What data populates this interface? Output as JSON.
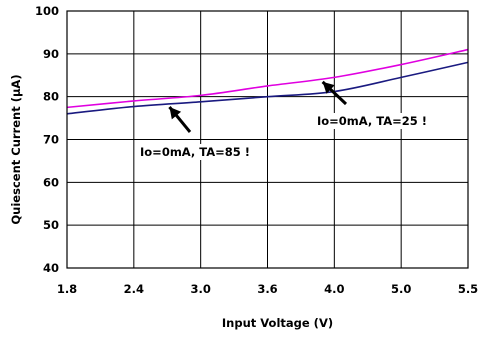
{
  "chart_data": {
    "type": "line",
    "title": "",
    "xlabel": "Input Voltage (V)",
    "ylabel": "Quiescent Current (µA)",
    "x_ticks": [
      "1.8",
      "2.4",
      "3.0",
      "3.6",
      "4.0",
      "5.0",
      "5.5"
    ],
    "y_ticks": [
      "40",
      "50",
      "60",
      "70",
      "80",
      "90",
      "100"
    ],
    "ylim": [
      40,
      100
    ],
    "grid": true,
    "series": [
      {
        "name": "Io=0mA, TA=85°",
        "color": "#1a1a80",
        "points": [
          [
            1.8,
            76.0
          ],
          [
            2.4,
            77.7
          ],
          [
            3.0,
            78.8
          ],
          [
            3.6,
            80.0
          ],
          [
            4.0,
            81.2
          ],
          [
            5.0,
            84.5
          ],
          [
            5.5,
            88.0
          ]
        ]
      },
      {
        "name": "Io=0mA, TA=25°",
        "color": "#e000e0",
        "points": [
          [
            1.8,
            77.5
          ],
          [
            2.4,
            79.0
          ],
          [
            3.0,
            80.3
          ],
          [
            3.6,
            82.5
          ],
          [
            4.0,
            84.5
          ],
          [
            5.0,
            87.5
          ],
          [
            5.5,
            91.0
          ]
        ]
      }
    ],
    "annotations": [
      {
        "text": "Io=0mA, TA=85 !",
        "series_index": 0
      },
      {
        "text": "Io=0mA, TA=25 !",
        "series_index": 1
      }
    ]
  }
}
